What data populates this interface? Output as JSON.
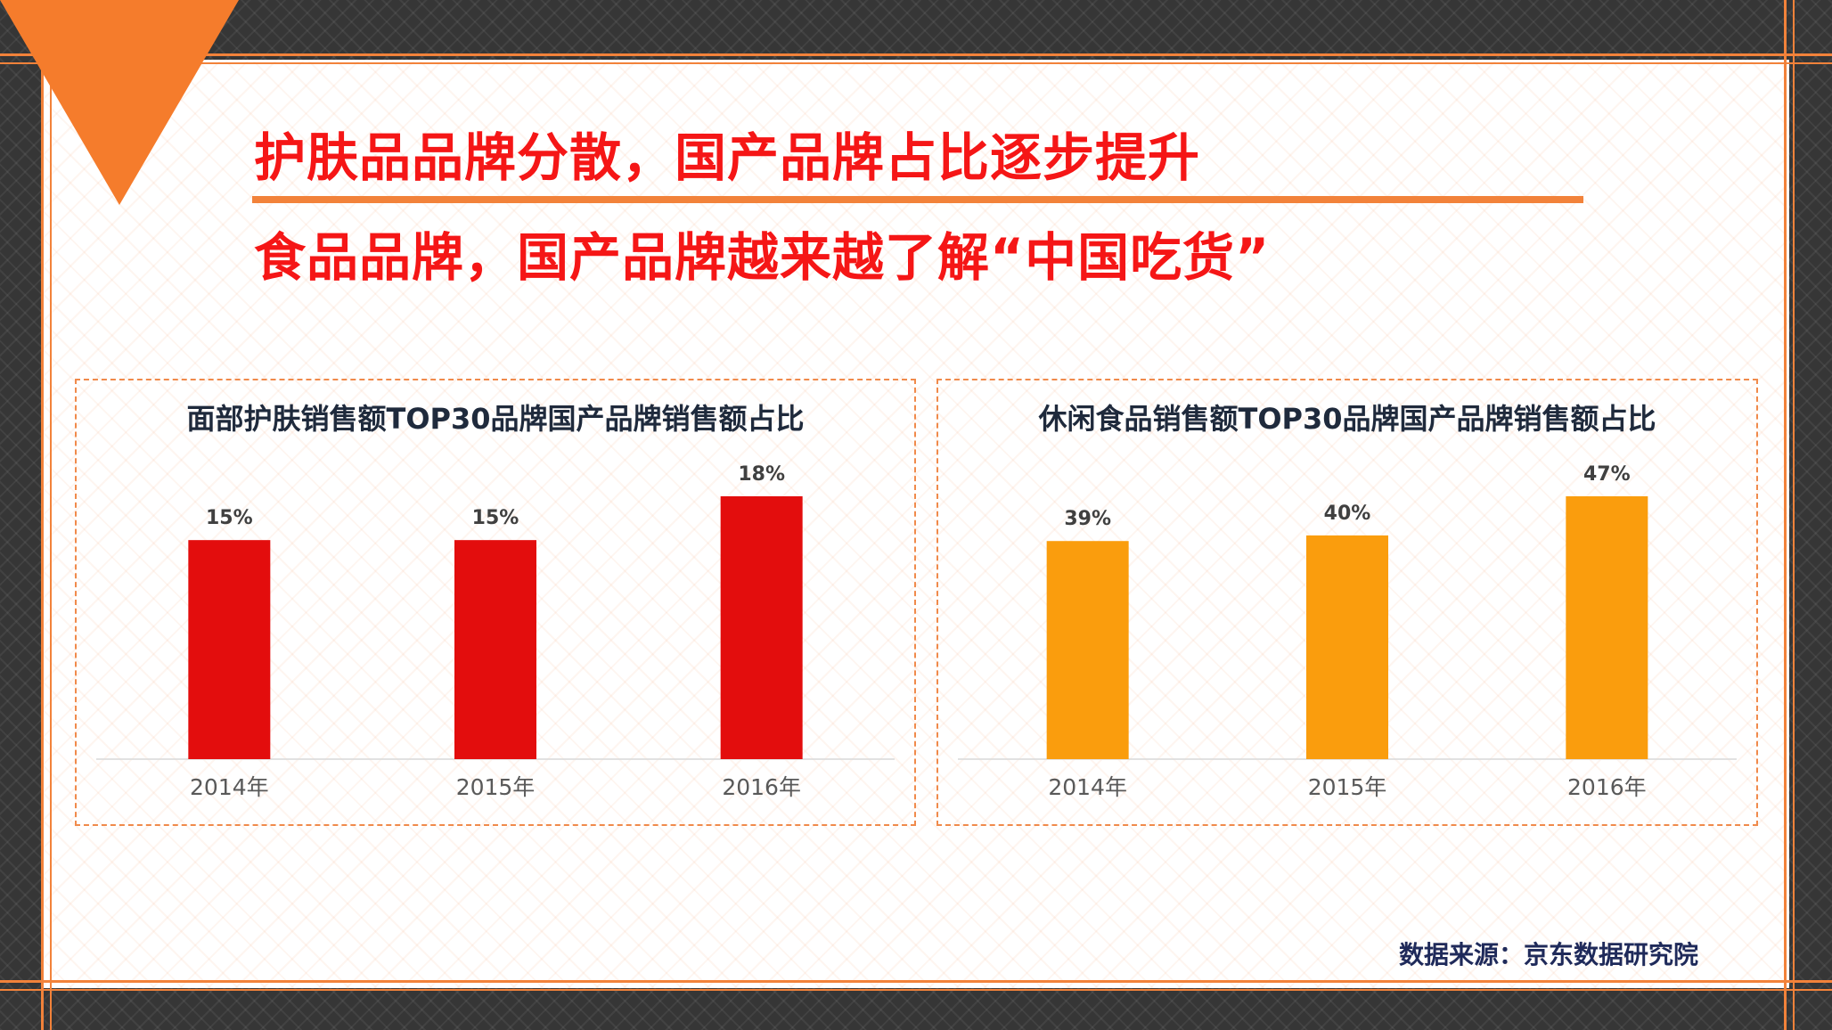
{
  "headline": {
    "line1": "护肤品品牌分散，国产品牌占比逐步提升",
    "line2": "食品品牌，国产品牌越来越了解“中国吃货”"
  },
  "source": "数据来源：京东数据研究院",
  "colors": {
    "accent": "#f2823a",
    "headline": "#f51616",
    "skin_bar": "#e30d0d",
    "food_bar": "#fa9d0d"
  },
  "chart_data": [
    {
      "type": "bar",
      "title": "面部护肤销售额TOP30品牌国产品牌销售额占比",
      "categories": [
        "2014年",
        "2015年",
        "2016年"
      ],
      "values": [
        15,
        15,
        18
      ],
      "value_labels": [
        "15%",
        "15%",
        "18%"
      ],
      "ylim": [
        0,
        18
      ],
      "grid": false,
      "color": "#e30d0d"
    },
    {
      "type": "bar",
      "title": "休闲食品销售额TOP30品牌国产品牌销售额占比",
      "categories": [
        "2014年",
        "2015年",
        "2016年"
      ],
      "values": [
        39,
        40,
        47
      ],
      "value_labels": [
        "39%",
        "40%",
        "47%"
      ],
      "ylim": [
        0,
        47
      ],
      "grid": false,
      "color": "#fa9d0d"
    }
  ]
}
